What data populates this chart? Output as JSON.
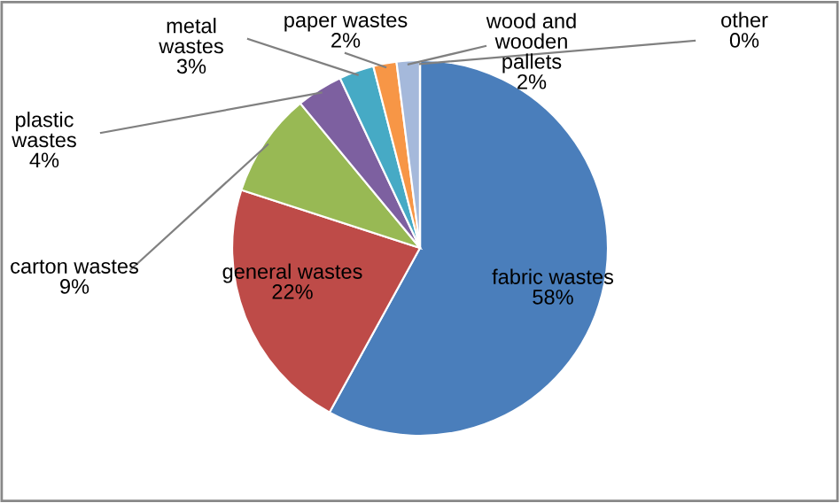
{
  "chart_data": {
    "type": "pie",
    "categories": [
      "fabric wastes",
      "general wastes",
      "carton wastes",
      "plastic wastes",
      "metal wastes",
      "paper wastes",
      "wood and wooden pallets",
      "other"
    ],
    "values": [
      58,
      22,
      9,
      4,
      3,
      2,
      2,
      0
    ],
    "value_labels": [
      "58%",
      "22%",
      "9%",
      "4%",
      "3%",
      "2%",
      "2%",
      "0%"
    ],
    "colors": [
      "#4a7ebb",
      "#be4b48",
      "#98b954",
      "#7d60a0",
      "#46aac5",
      "#f79646",
      "#a5b9db",
      "#d99694"
    ]
  }
}
